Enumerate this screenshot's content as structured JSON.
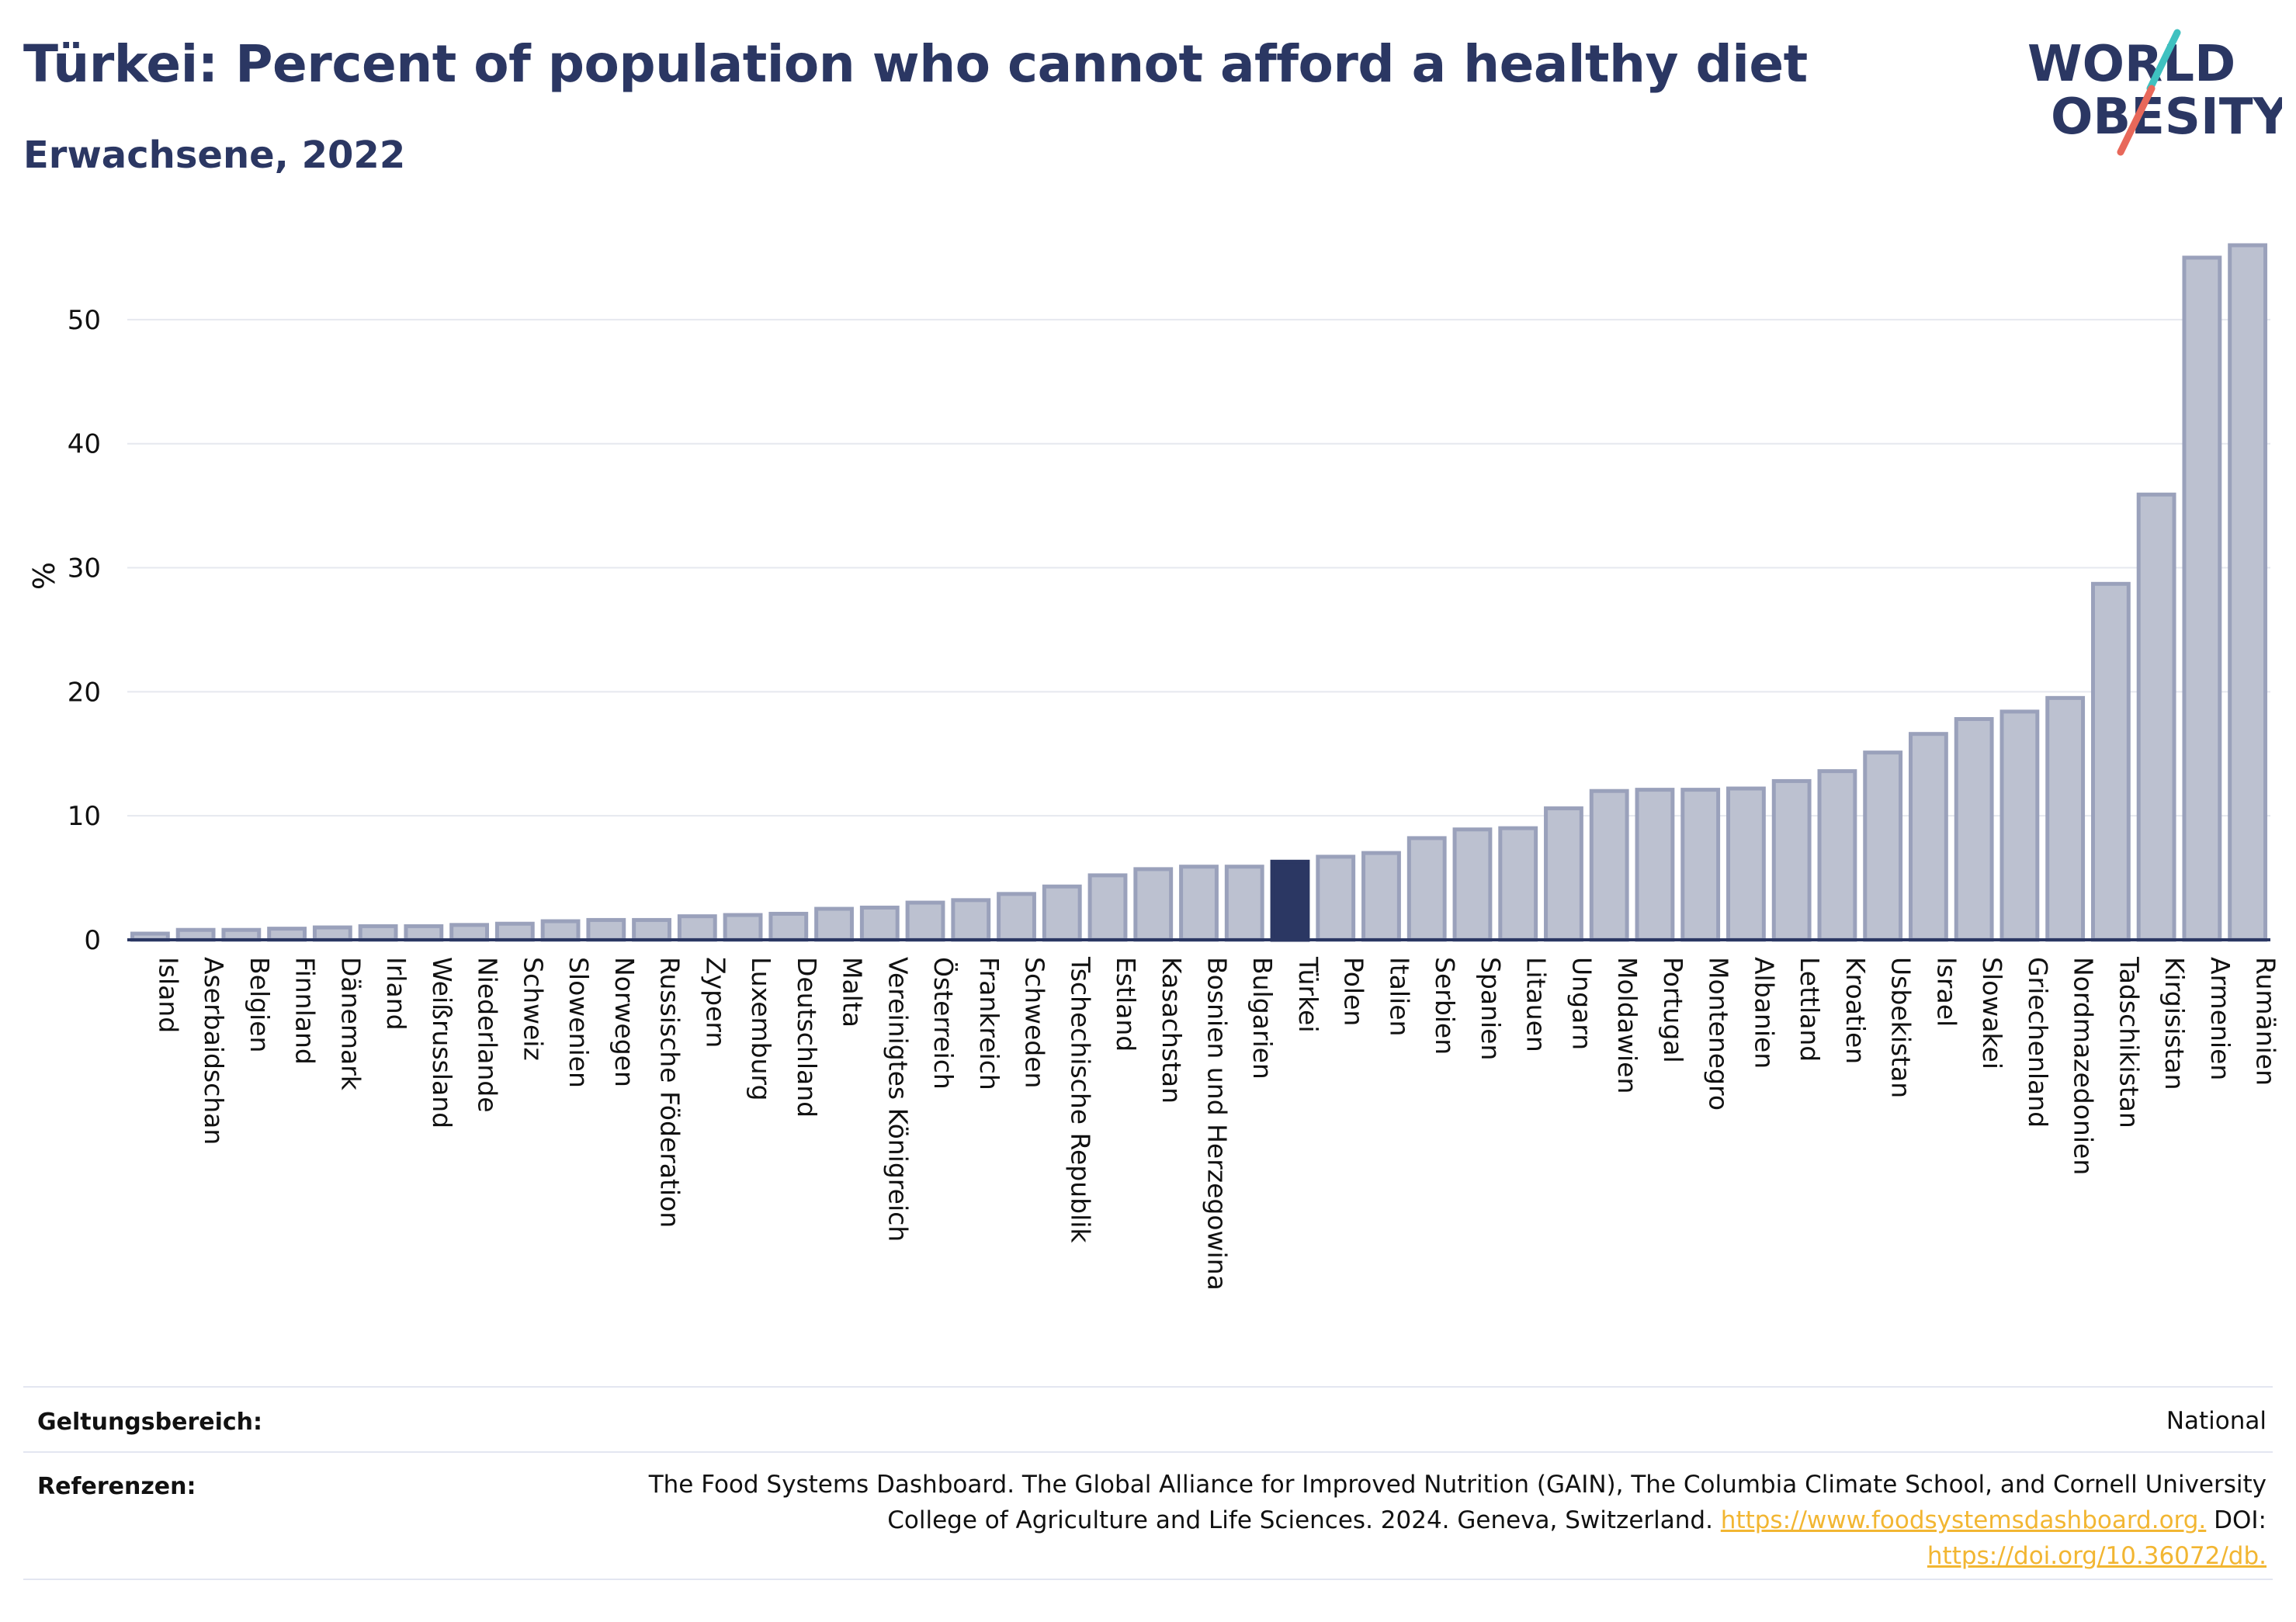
{
  "header": {
    "title": "Türkei: Percent of population who cannot afford a healthy diet",
    "subtitle": "Erwachsene, 2022"
  },
  "logo": {
    "line1": "WORLD",
    "line2": "OBESITY",
    "colors": {
      "text": "#2b3763",
      "accent_coral": "#e8685a",
      "accent_teal": "#3fc1c0"
    }
  },
  "chart_data": {
    "type": "bar",
    "ylabel": "%",
    "xlabel": "",
    "ylim": [
      0,
      57
    ],
    "yticks": [
      0,
      10,
      20,
      30,
      40,
      50
    ],
    "grid": true,
    "highlight": "Türkei",
    "colors": {
      "bar": "#bcc1d0",
      "bar_border": "#9aa1bb",
      "highlight": "#2b3763",
      "axis": "#2b3763",
      "grid": "#e6e8ef"
    },
    "categories": [
      "Island",
      "Aserbaidschan",
      "Belgien",
      "Finnland",
      "Dänemark",
      "Irland",
      "Weißrussland",
      "Niederlande",
      "Schweiz",
      "Slowenien",
      "Norwegen",
      "Russische Föderation",
      "Zypern",
      "Luxemburg",
      "Deutschland",
      "Malta",
      "Vereinigtes Königreich",
      "Österreich",
      "Frankreich",
      "Schweden",
      "Tschechische Republik",
      "Estland",
      "Kasachstan",
      "Bosnien und Herzegowina",
      "Bulgarien",
      "Türkei",
      "Polen",
      "Italien",
      "Serbien",
      "Spanien",
      "Litauen",
      "Ungarn",
      "Moldawien",
      "Portugal",
      "Montenegro",
      "Albanien",
      "Lettland",
      "Kroatien",
      "Usbekistan",
      "Israel",
      "Slowakei",
      "Griechenland",
      "Nordmazedonien",
      "Tadschikistan",
      "Kirgisistan",
      "Armenien",
      "Rumänien"
    ],
    "values": [
      0.5,
      0.8,
      0.8,
      0.9,
      1.0,
      1.1,
      1.1,
      1.2,
      1.3,
      1.5,
      1.6,
      1.6,
      1.9,
      2.0,
      2.1,
      2.5,
      2.6,
      3.0,
      3.2,
      3.7,
      4.3,
      5.2,
      5.7,
      5.9,
      5.9,
      6.3,
      6.7,
      7.0,
      8.2,
      8.9,
      9.0,
      10.6,
      12.0,
      12.1,
      12.1,
      12.2,
      12.8,
      13.6,
      15.1,
      16.6,
      17.8,
      18.4,
      19.5,
      28.7,
      35.9,
      55.0,
      56.0
    ]
  },
  "footer": {
    "scope_label": "Geltungsbereich:",
    "scope_value": "National",
    "refs_label": "Referenzen:",
    "refs_text_line1": "The Food Systems Dashboard. The Global Alliance for Improved Nutrition (GAIN), The Columbia Climate School, and Cornell University",
    "refs_text_line2": "College of Agriculture and Life Sciences. 2024. Geneva, Switzerland.",
    "refs_link1": "https://www.foodsystemsdashboard.org.",
    "refs_doi_label": "DOI:",
    "refs_link2": "https://doi.org/10.36072/db."
  }
}
